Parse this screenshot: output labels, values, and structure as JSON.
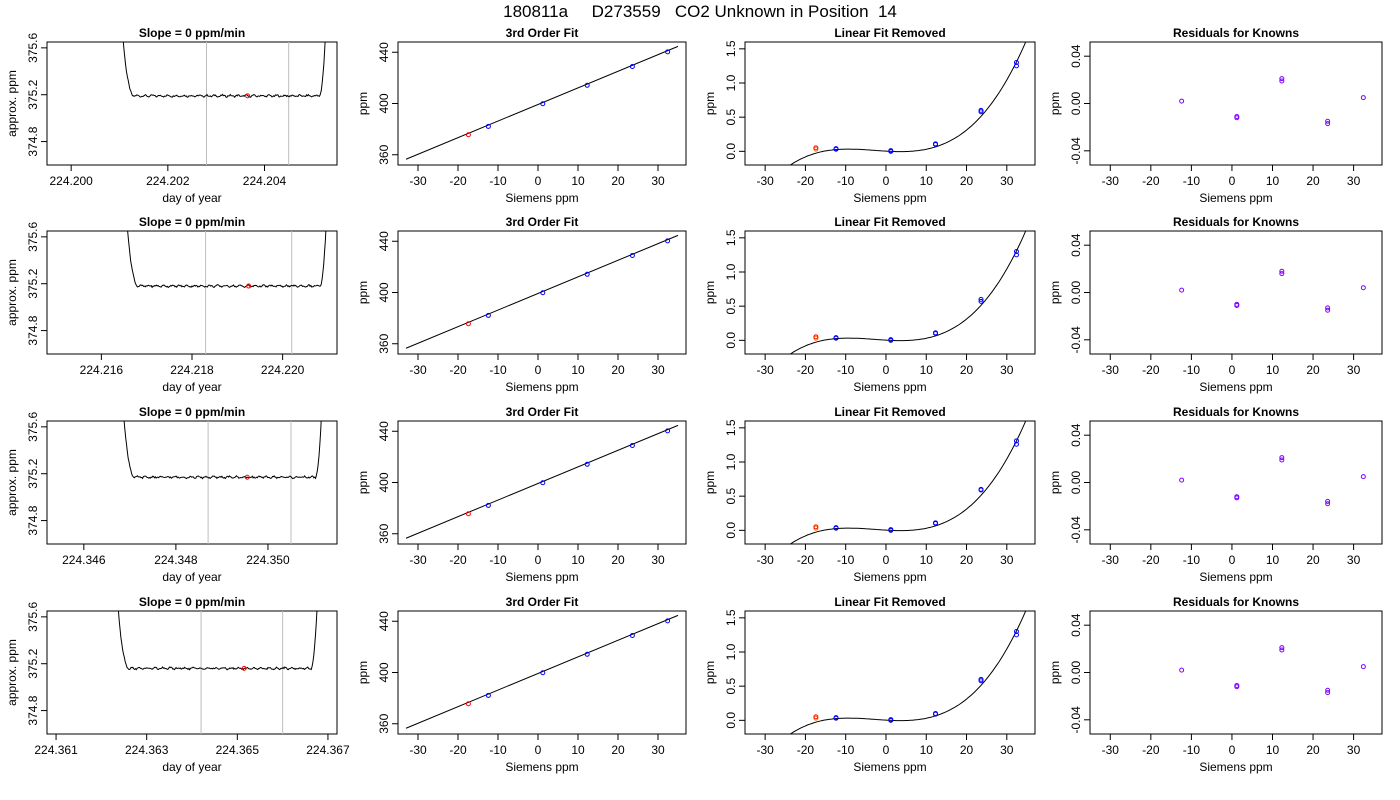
{
  "page": {
    "title": "180811a     D273559   CO2 Unknown in Position  14"
  },
  "colors": {
    "known_point": "#0000ff",
    "unknown_point": "#ff0000",
    "residual_point": "#7f00ff",
    "unknown_alt": "#ff8000",
    "curve": "#000000",
    "window_line": "#bebebe"
  },
  "chart_data": [
    {
      "type": "line",
      "title": "Slope =  0  ppm/min",
      "xlabel": "day of year",
      "ylabel": "approx. ppm",
      "xlim": [
        224.1995,
        224.2055
      ],
      "ylim": [
        374.6,
        375.65
      ],
      "xticks": [
        224.2,
        224.202,
        224.204
      ],
      "xtick_labels": [
        "224.200",
        "224.202",
        "224.204"
      ],
      "yticks": [
        374.8,
        375.2,
        375.6
      ],
      "ytick_labels": [
        "374.8",
        "375.2",
        "375.6"
      ],
      "x_start": 224.201,
      "x_end": 224.2053,
      "level": 375.19,
      "vlines": [
        224.2028,
        224.2045
      ],
      "marker": {
        "x": 224.20365,
        "y": 375.19
      }
    },
    {
      "type": "scatter",
      "title": "3rd Order Fit",
      "xlabel": "Siemens ppm",
      "ylabel": "ppm",
      "xlim": [
        -35,
        37
      ],
      "ylim": [
        352,
        448
      ],
      "xticks": [
        -30,
        -20,
        -10,
        0,
        10,
        20,
        30
      ],
      "xtick_labels": [
        "-30",
        "-20",
        "-10",
        "0",
        "10",
        "20",
        "30"
      ],
      "yticks": [
        360,
        400,
        440
      ],
      "ytick_labels": [
        "360",
        "400",
        "440"
      ],
      "line": {
        "x": [
          -33,
          35
        ],
        "y": [
          356.5,
          444.6
        ]
      },
      "known": {
        "x": [
          -12.4,
          1.2,
          12.3,
          23.6,
          32.4
        ],
        "y": [
          382.1,
          399.8,
          414.2,
          428.9,
          440.3
        ]
      },
      "unknown": {
        "x": [
          -17.4
        ],
        "y": [
          375.6
        ]
      }
    },
    {
      "type": "scatter",
      "title": "Linear Fit Removed",
      "xlabel": "Siemens ppm",
      "ylabel": "ppm",
      "xlim": [
        -35,
        37
      ],
      "ylim": [
        -0.2,
        1.6
      ],
      "xticks": [
        -30,
        -20,
        -10,
        0,
        10,
        20,
        30
      ],
      "xtick_labels": [
        "-30",
        "-20",
        "-10",
        "0",
        "10",
        "20",
        "30"
      ],
      "yticks": [
        0.0,
        0.5,
        1.0,
        1.5
      ],
      "ytick_labels": [
        "0.0",
        "0.5",
        "1.0",
        "1.5"
      ],
      "curve_fn": "cubic",
      "known": {
        "x": [
          -12.4,
          -12.4,
          1.2,
          1.2,
          12.3,
          12.3,
          23.6,
          23.6,
          32.4,
          32.4
        ],
        "y": [
          0.03,
          0.04,
          0.0,
          0.01,
          0.1,
          0.11,
          0.58,
          0.6,
          1.25,
          1.3
        ]
      },
      "unknown": {
        "x": [
          -17.4,
          -17.4
        ],
        "y": [
          0.03,
          0.05
        ]
      }
    },
    {
      "type": "scatter",
      "title": "Residuals for Knowns",
      "xlabel": "Siemens ppm",
      "ylabel": "ppm",
      "xlim": [
        -35,
        37
      ],
      "ylim": [
        -0.052,
        0.052
      ],
      "xticks": [
        -30,
        -20,
        -10,
        0,
        10,
        20,
        30
      ],
      "xtick_labels": [
        "-30",
        "-20",
        "-10",
        "0",
        "10",
        "20",
        "30"
      ],
      "yticks": [
        -0.04,
        0.0,
        0.04
      ],
      "ytick_labels": [
        "-0.04",
        "0.00",
        "0.04"
      ],
      "points": {
        "x": [
          -12.4,
          1.2,
          1.2,
          12.3,
          12.3,
          23.6,
          23.6,
          32.4
        ],
        "y": [
          0.002,
          -0.011,
          -0.012,
          0.021,
          0.019,
          -0.015,
          -0.017,
          0.005
        ]
      }
    },
    {
      "type": "line",
      "title": "Slope =  0  ppm/min",
      "xlabel": "day of year",
      "ylabel": "approx. ppm",
      "xlim": [
        224.2148,
        224.2212
      ],
      "ylim": [
        374.6,
        375.65
      ],
      "xticks": [
        224.216,
        224.218,
        224.22
      ],
      "xtick_labels": [
        "224.216",
        "224.218",
        "224.220"
      ],
      "yticks": [
        374.8,
        375.2,
        375.6
      ],
      "ytick_labels": [
        "374.8",
        "375.2",
        "375.6"
      ],
      "x_start": 224.2165,
      "x_end": 224.221,
      "level": 375.18,
      "vlines": [
        224.2183,
        224.2202
      ],
      "marker": {
        "x": 224.21925,
        "y": 375.18
      }
    },
    {
      "type": "scatter",
      "title": "3rd Order Fit",
      "xlabel": "Siemens ppm",
      "ylabel": "ppm",
      "xlim": [
        -35,
        37
      ],
      "ylim": [
        352,
        448
      ],
      "xticks": [
        -30,
        -20,
        -10,
        0,
        10,
        20,
        30
      ],
      "xtick_labels": [
        "-30",
        "-20",
        "-10",
        "0",
        "10",
        "20",
        "30"
      ],
      "yticks": [
        360,
        400,
        440
      ],
      "ytick_labels": [
        "360",
        "400",
        "440"
      ],
      "line": {
        "x": [
          -33,
          35
        ],
        "y": [
          356.5,
          444.6
        ]
      },
      "known": {
        "x": [
          -12.4,
          1.2,
          12.3,
          23.6,
          32.4
        ],
        "y": [
          382.1,
          399.8,
          414.2,
          428.9,
          440.3
        ]
      },
      "unknown": {
        "x": [
          -17.4
        ],
        "y": [
          375.6
        ]
      }
    },
    {
      "type": "scatter",
      "title": "Linear Fit Removed",
      "xlabel": "Siemens ppm",
      "ylabel": "ppm",
      "xlim": [
        -35,
        37
      ],
      "ylim": [
        -0.2,
        1.6
      ],
      "xticks": [
        -30,
        -20,
        -10,
        0,
        10,
        20,
        30
      ],
      "xtick_labels": [
        "-30",
        "-20",
        "-10",
        "0",
        "10",
        "20",
        "30"
      ],
      "yticks": [
        0.0,
        0.5,
        1.0,
        1.5
      ],
      "ytick_labels": [
        "0.0",
        "0.5",
        "1.0",
        "1.5"
      ],
      "curve_fn": "cubic",
      "known": {
        "x": [
          -12.4,
          -12.4,
          1.2,
          1.2,
          12.3,
          12.3,
          23.6,
          23.6,
          32.4,
          32.4
        ],
        "y": [
          0.03,
          0.04,
          0.0,
          0.01,
          0.1,
          0.11,
          0.57,
          0.6,
          1.25,
          1.3
        ]
      },
      "unknown": {
        "x": [
          -17.4,
          -17.4
        ],
        "y": [
          0.03,
          0.05
        ]
      }
    },
    {
      "type": "scatter",
      "title": "Residuals for Knowns",
      "xlabel": "Siemens ppm",
      "ylabel": "ppm",
      "xlim": [
        -35,
        37
      ],
      "ylim": [
        -0.052,
        0.052
      ],
      "xticks": [
        -30,
        -20,
        -10,
        0,
        10,
        20,
        30
      ],
      "xtick_labels": [
        "-30",
        "-20",
        "-10",
        "0",
        "10",
        "20",
        "30"
      ],
      "yticks": [
        -0.04,
        0.0,
        0.04
      ],
      "ytick_labels": [
        "-0.04",
        "0.00",
        "0.04"
      ],
      "points": {
        "x": [
          -12.4,
          1.2,
          1.2,
          12.3,
          12.3,
          23.6,
          23.6,
          32.4
        ],
        "y": [
          0.002,
          -0.01,
          -0.011,
          0.018,
          0.016,
          -0.013,
          -0.015,
          0.004
        ]
      }
    },
    {
      "type": "line",
      "title": "Slope =  0  ppm/min",
      "xlabel": "day of year",
      "ylabel": "approx. ppm",
      "xlim": [
        224.3452,
        224.3515
      ],
      "ylim": [
        374.6,
        375.65
      ],
      "xticks": [
        224.346,
        224.348,
        224.35
      ],
      "xtick_labels": [
        "224.346",
        "224.348",
        "224.350"
      ],
      "yticks": [
        374.8,
        375.2,
        375.6
      ],
      "ytick_labels": [
        "374.8",
        "375.2",
        "375.6"
      ],
      "x_start": 224.3468,
      "x_end": 224.3512,
      "level": 375.17,
      "vlines": [
        224.3487,
        224.3505
      ],
      "marker": {
        "x": 224.34955,
        "y": 375.17
      }
    },
    {
      "type": "scatter",
      "title": "3rd Order Fit",
      "xlabel": "Siemens ppm",
      "ylabel": "ppm",
      "xlim": [
        -35,
        37
      ],
      "ylim": [
        352,
        448
      ],
      "xticks": [
        -30,
        -20,
        -10,
        0,
        10,
        20,
        30
      ],
      "xtick_labels": [
        "-30",
        "-20",
        "-10",
        "0",
        "10",
        "20",
        "30"
      ],
      "yticks": [
        360,
        400,
        440
      ],
      "ytick_labels": [
        "360",
        "400",
        "440"
      ],
      "line": {
        "x": [
          -33,
          35
        ],
        "y": [
          356.5,
          444.6
        ]
      },
      "known": {
        "x": [
          -12.4,
          1.2,
          12.3,
          23.6,
          32.4
        ],
        "y": [
          382.1,
          399.8,
          414.2,
          428.9,
          440.3
        ]
      },
      "unknown": {
        "x": [
          -17.4
        ],
        "y": [
          375.6
        ]
      }
    },
    {
      "type": "scatter",
      "title": "Linear Fit Removed",
      "xlabel": "Siemens ppm",
      "ylabel": "ppm",
      "xlim": [
        -35,
        37
      ],
      "ylim": [
        -0.2,
        1.6
      ],
      "xticks": [
        -30,
        -20,
        -10,
        0,
        10,
        20,
        30
      ],
      "xtick_labels": [
        "-30",
        "-20",
        "-10",
        "0",
        "10",
        "20",
        "30"
      ],
      "yticks": [
        0.0,
        0.5,
        1.0,
        1.5
      ],
      "ytick_labels": [
        "0.0",
        "0.5",
        "1.0",
        "1.5"
      ],
      "curve_fn": "cubic",
      "known": {
        "x": [
          -12.4,
          -12.4,
          1.2,
          1.2,
          12.3,
          12.3,
          23.6,
          23.6,
          32.4,
          32.4
        ],
        "y": [
          0.03,
          0.04,
          0.0,
          0.01,
          0.1,
          0.11,
          0.59,
          0.6,
          1.26,
          1.31
        ]
      },
      "unknown": {
        "x": [
          -17.4,
          -17.4
        ],
        "y": [
          0.03,
          0.05
        ]
      }
    },
    {
      "type": "scatter",
      "title": "Residuals for Knowns",
      "xlabel": "Siemens ppm",
      "ylabel": "ppm",
      "xlim": [
        -35,
        37
      ],
      "ylim": [
        -0.052,
        0.052
      ],
      "xticks": [
        -30,
        -20,
        -10,
        0,
        10,
        20,
        30
      ],
      "xtick_labels": [
        "-30",
        "-20",
        "-10",
        "0",
        "10",
        "20",
        "30"
      ],
      "yticks": [
        -0.04,
        0.0,
        0.04
      ],
      "ytick_labels": [
        "-0.04",
        "0.00",
        "0.04"
      ],
      "points": {
        "x": [
          -12.4,
          1.2,
          1.2,
          12.3,
          12.3,
          23.6,
          23.6,
          32.4
        ],
        "y": [
          0.002,
          -0.012,
          -0.013,
          0.021,
          0.019,
          -0.016,
          -0.018,
          0.005
        ]
      }
    },
    {
      "type": "line",
      "title": "Slope =  0  ppm/min",
      "xlabel": "day of year",
      "ylabel": "approx. ppm",
      "xlim": [
        224.3608,
        224.3672
      ],
      "ylim": [
        374.6,
        375.65
      ],
      "xticks": [
        224.361,
        224.363,
        224.365,
        224.367
      ],
      "xtick_labels": [
        "224.361",
        "224.363",
        "224.365",
        "224.367"
      ],
      "yticks": [
        374.8,
        375.2,
        375.6
      ],
      "ytick_labels": [
        "374.8",
        "375.2",
        "375.6"
      ],
      "x_start": 224.3623,
      "x_end": 224.3668,
      "level": 375.16,
      "vlines": [
        224.3642,
        224.366
      ],
      "marker": {
        "x": 224.36515,
        "y": 375.16
      }
    },
    {
      "type": "scatter",
      "title": "3rd Order Fit",
      "xlabel": "Siemens ppm",
      "ylabel": "ppm",
      "xlim": [
        -35,
        37
      ],
      "ylim": [
        352,
        448
      ],
      "xticks": [
        -30,
        -20,
        -10,
        0,
        10,
        20,
        30
      ],
      "xtick_labels": [
        "-30",
        "-20",
        "-10",
        "0",
        "10",
        "20",
        "30"
      ],
      "yticks": [
        360,
        400,
        440
      ],
      "ytick_labels": [
        "360",
        "400",
        "440"
      ],
      "line": {
        "x": [
          -33,
          35
        ],
        "y": [
          356.5,
          444.6
        ]
      },
      "known": {
        "x": [
          -12.4,
          1.2,
          12.3,
          23.6,
          32.4
        ],
        "y": [
          382.1,
          399.8,
          414.2,
          428.9,
          440.3
        ]
      },
      "unknown": {
        "x": [
          -17.4
        ],
        "y": [
          375.6
        ]
      }
    },
    {
      "type": "scatter",
      "title": "Linear Fit Removed",
      "xlabel": "Siemens ppm",
      "ylabel": "ppm",
      "xlim": [
        -35,
        37
      ],
      "ylim": [
        -0.2,
        1.6
      ],
      "xticks": [
        -30,
        -20,
        -10,
        0,
        10,
        20,
        30
      ],
      "xtick_labels": [
        "-30",
        "-20",
        "-10",
        "0",
        "10",
        "20",
        "30"
      ],
      "yticks": [
        0.0,
        0.5,
        1.0,
        1.5
      ],
      "ytick_labels": [
        "0.0",
        "0.5",
        "1.0",
        "1.5"
      ],
      "curve_fn": "cubic",
      "known": {
        "x": [
          -12.4,
          -12.4,
          1.2,
          1.2,
          12.3,
          12.3,
          23.6,
          23.6,
          32.4,
          32.4
        ],
        "y": [
          0.03,
          0.04,
          0.0,
          0.01,
          0.09,
          0.1,
          0.58,
          0.6,
          1.25,
          1.3
        ]
      },
      "unknown": {
        "x": [
          -17.4,
          -17.4
        ],
        "y": [
          0.03,
          0.05
        ]
      }
    },
    {
      "type": "scatter",
      "title": "Residuals for Knowns",
      "xlabel": "Siemens ppm",
      "ylabel": "ppm",
      "xlim": [
        -35,
        37
      ],
      "ylim": [
        -0.052,
        0.052
      ],
      "xticks": [
        -30,
        -20,
        -10,
        0,
        10,
        20,
        30
      ],
      "xtick_labels": [
        "-30",
        "-20",
        "-10",
        "0",
        "10",
        "20",
        "30"
      ],
      "yticks": [
        -0.04,
        0.0,
        0.04
      ],
      "ytick_labels": [
        "-0.04",
        "0.00",
        "0.04"
      ],
      "points": {
        "x": [
          -12.4,
          1.2,
          1.2,
          12.3,
          12.3,
          23.6,
          23.6,
          32.4
        ],
        "y": [
          0.002,
          -0.011,
          -0.012,
          0.021,
          0.019,
          -0.015,
          -0.017,
          0.005
        ]
      }
    }
  ]
}
